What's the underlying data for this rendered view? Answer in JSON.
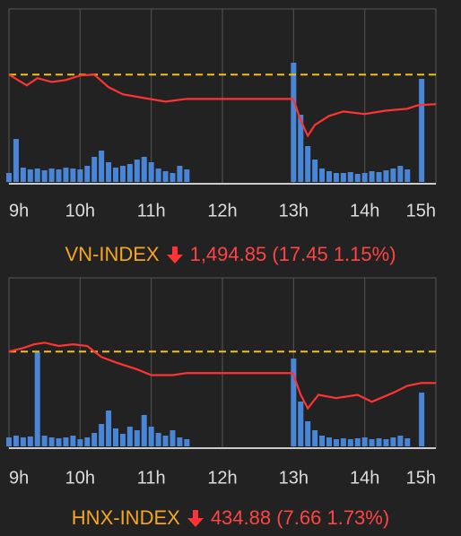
{
  "chart_data": [
    {
      "type": "line",
      "title": "VN-INDEX",
      "change_text": "1,494.85 (17.45 1.15%)",
      "x": [
        9.0,
        9.25,
        9.4,
        9.6,
        9.8,
        10.0,
        10.2,
        10.4,
        10.6,
        10.9,
        11.2,
        11.5,
        12.0,
        12.99,
        13.0,
        13.1,
        13.2,
        13.3,
        13.5,
        13.7,
        14.0,
        14.3,
        14.6,
        14.75,
        15.0
      ],
      "values": [
        1512.3,
        1506,
        1510.2,
        1508,
        1509.1,
        1511.8,
        1512.3,
        1504.9,
        1500.7,
        1498.5,
        1496.4,
        1498,
        1498,
        1498,
        1497.5,
        1485.3,
        1476.3,
        1482.7,
        1488,
        1490.6,
        1489.1,
        1491.1,
        1492.2,
        1494.3,
        1494.9
      ],
      "reference": 1512.3,
      "ylim": [
        1448,
        1551
      ],
      "xlim": [
        9,
        15
      ],
      "xticks": [
        {
          "value": 9,
          "label": "9h"
        },
        {
          "value": 10,
          "label": "10h"
        },
        {
          "value": 11,
          "label": "11h"
        },
        {
          "value": 12,
          "label": "12h"
        },
        {
          "value": 13,
          "label": "13h"
        },
        {
          "value": 14,
          "label": "14h"
        },
        {
          "value": 15,
          "label": "15h"
        }
      ],
      "up_color": "#44dd44",
      "down_color": "#ff3333",
      "reference_color": "#f0c020",
      "title_color": "#f5a623",
      "volume": {
        "color": "#4a86d8",
        "ylim": [
          0,
          140
        ],
        "x": [
          9.0,
          9.1,
          9.2,
          9.3,
          9.4,
          9.5,
          9.6,
          9.7,
          9.8,
          9.9,
          10.0,
          10.1,
          10.2,
          10.3,
          10.4,
          10.5,
          10.6,
          10.7,
          10.8,
          10.9,
          11.0,
          11.1,
          11.2,
          11.3,
          11.4,
          11.5,
          13.0,
          13.1,
          13.2,
          13.3,
          13.4,
          13.5,
          13.6,
          13.7,
          13.8,
          13.9,
          14.0,
          14.1,
          14.2,
          14.3,
          14.4,
          14.5,
          14.6,
          14.8
        ],
        "values": [
          10,
          48,
          16,
          14,
          15,
          13,
          15,
          14,
          16,
          15,
          14,
          18,
          28,
          35,
          22,
          16,
          18,
          20,
          25,
          28,
          22,
          15,
          12,
          10,
          18,
          14,
          133,
          75,
          40,
          25,
          15,
          12,
          10,
          10,
          11,
          9,
          10,
          12,
          11,
          13,
          15,
          18,
          14,
          115
        ]
      }
    },
    {
      "type": "line",
      "title": "HNX-INDEX",
      "change_text": "434.88 (7.66 1.73%)",
      "x": [
        9.0,
        9.2,
        9.35,
        9.5,
        9.7,
        9.9,
        10.1,
        10.3,
        10.5,
        10.8,
        11.0,
        11.3,
        11.5,
        12.99,
        13.0,
        13.1,
        13.2,
        13.35,
        13.6,
        13.9,
        14.1,
        14.4,
        14.6,
        14.8,
        15.0
      ],
      "values": [
        442.54,
        443.4,
        444.3,
        444.7,
        443.9,
        444.3,
        443.9,
        441.2,
        439.9,
        438.2,
        436.8,
        436.8,
        437.3,
        437.3,
        436.8,
        432.0,
        428.7,
        432.0,
        431.2,
        432.0,
        430.3,
        432.5,
        434.2,
        434.9,
        434.88
      ],
      "reference": 442.54,
      "ylim": [
        419,
        460.5
      ],
      "xlim": [
        9,
        15
      ],
      "xticks": [
        {
          "value": 9,
          "label": "9h"
        },
        {
          "value": 10,
          "label": "10h"
        },
        {
          "value": 11,
          "label": "11h"
        },
        {
          "value": 12,
          "label": "12h"
        },
        {
          "value": 13,
          "label": "13h"
        },
        {
          "value": 14,
          "label": "14h"
        },
        {
          "value": 15,
          "label": "15h"
        }
      ],
      "up_color": "#44dd44",
      "down_color": "#ff3333",
      "reference_color": "#f0c020",
      "title_color": "#f5a623",
      "volume": {
        "color": "#4a86d8",
        "ylim": [
          0,
          140
        ],
        "x": [
          9.0,
          9.1,
          9.2,
          9.3,
          9.4,
          9.5,
          9.6,
          9.7,
          9.8,
          9.9,
          10.0,
          10.1,
          10.2,
          10.3,
          10.4,
          10.5,
          10.6,
          10.7,
          10.8,
          10.9,
          11.0,
          11.1,
          11.2,
          11.3,
          11.4,
          11.5,
          13.0,
          13.1,
          13.2,
          13.3,
          13.4,
          13.5,
          13.6,
          13.7,
          13.8,
          13.9,
          14.0,
          14.1,
          14.2,
          14.3,
          14.4,
          14.5,
          14.6,
          14.8
        ],
        "values": [
          10,
          12,
          10,
          11,
          105,
          12,
          10,
          9,
          10,
          12,
          8,
          10,
          15,
          25,
          40,
          20,
          14,
          22,
          18,
          35,
          22,
          15,
          12,
          18,
          10,
          8,
          98,
          50,
          28,
          18,
          12,
          10,
          8,
          9,
          8,
          9,
          10,
          8,
          9,
          8,
          10,
          12,
          9,
          60
        ]
      }
    }
  ]
}
